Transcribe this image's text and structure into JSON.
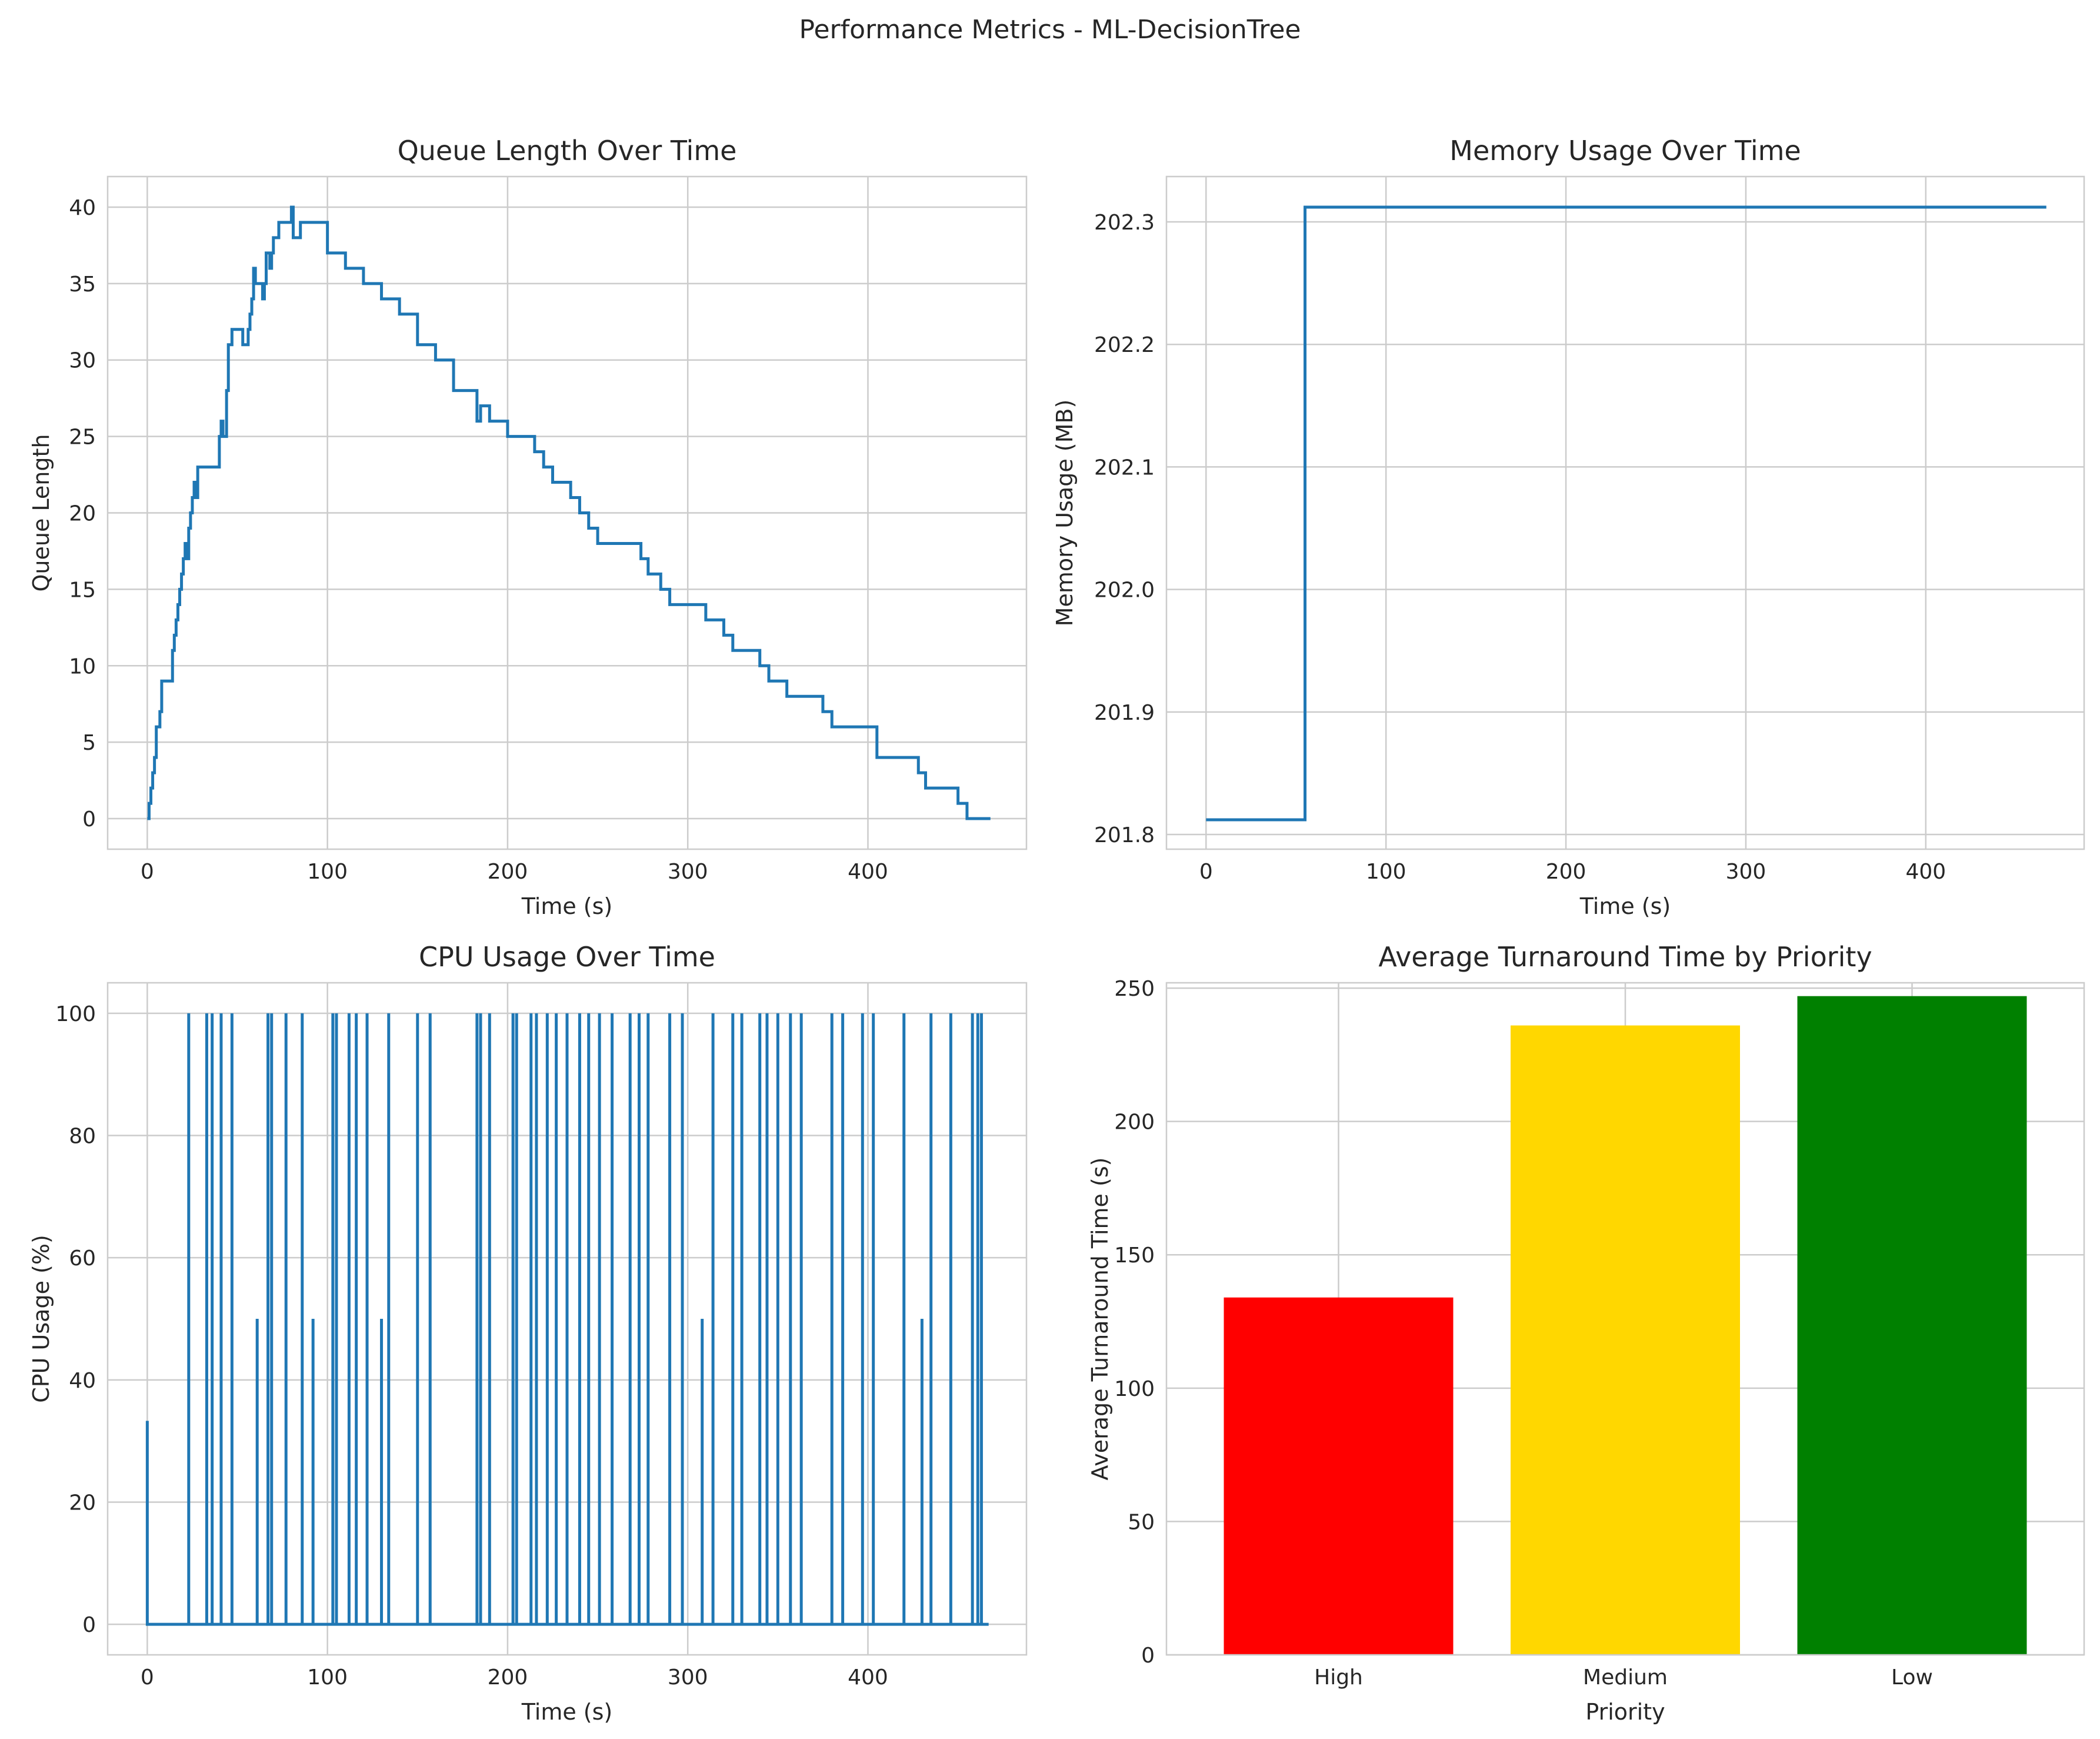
{
  "figure": {
    "title": "Performance Metrics - ML-DecisionTree"
  },
  "chart_data": [
    {
      "id": "queue",
      "type": "line",
      "title": "Queue Length Over Time",
      "xlabel": "Time (s)",
      "ylabel": "Queue Length",
      "xlim": [
        -22,
        488
      ],
      "ylim": [
        -2,
        42
      ],
      "xticks": [
        0,
        100,
        200,
        300,
        400
      ],
      "yticks": [
        0,
        5,
        10,
        15,
        20,
        25,
        30,
        35,
        40
      ],
      "grid": true,
      "color": "#1f77b4",
      "step": true,
      "x": [
        0,
        1,
        2,
        3,
        4,
        5,
        6,
        7,
        8,
        9,
        10,
        14,
        15,
        16,
        17,
        18,
        19,
        20,
        21,
        22,
        23,
        24,
        25,
        26,
        27,
        28,
        30,
        38,
        40,
        41,
        42,
        43,
        44,
        45,
        46,
        47,
        50,
        53,
        55,
        56,
        57,
        58,
        59,
        60,
        62,
        64,
        65,
        66,
        67,
        68,
        69,
        70,
        71,
        72,
        73,
        75,
        78,
        80,
        81,
        85,
        95,
        100,
        110,
        120,
        130,
        140,
        150,
        160,
        165,
        170,
        180,
        183,
        185,
        190,
        200,
        205,
        215,
        220,
        225,
        235,
        240,
        245,
        250,
        260,
        270,
        274,
        275,
        276,
        278,
        285,
        290,
        295,
        305,
        310,
        320,
        325,
        340,
        345,
        355,
        360,
        375,
        380,
        395,
        405,
        420,
        428,
        430,
        432,
        445,
        450,
        455,
        468
      ],
      "y": [
        0,
        1,
        2,
        3,
        4,
        6,
        6,
        7,
        9,
        9,
        9,
        11,
        12,
        13,
        14,
        15,
        16,
        17,
        18,
        17,
        19,
        20,
        21,
        22,
        21,
        23,
        23,
        23,
        25,
        26,
        25,
        25,
        28,
        31,
        31,
        32,
        32,
        31,
        31,
        32,
        33,
        34,
        36,
        35,
        35,
        34,
        35,
        37,
        37,
        36,
        37,
        38,
        38,
        38,
        39,
        39,
        39,
        40,
        38,
        39,
        39,
        37,
        36,
        35,
        34,
        33,
        31,
        30,
        30,
        28,
        28,
        26,
        27,
        26,
        25,
        25,
        24,
        23,
        22,
        21,
        20,
        19,
        18,
        18,
        18,
        17,
        17,
        17,
        16,
        15,
        14,
        14,
        14,
        13,
        12,
        11,
        10,
        9,
        8,
        8,
        7,
        6,
        6,
        4,
        4,
        3,
        3,
        2,
        2,
        1,
        0,
        0
      ]
    },
    {
      "id": "memory",
      "type": "line",
      "title": "Memory Usage Over Time",
      "xlabel": "Time (s)",
      "ylabel": "Memory Usage (MB)",
      "xlim": [
        -22,
        488
      ],
      "ylim": [
        201.788,
        202.337
      ],
      "xticks": [
        0,
        100,
        200,
        300,
        400
      ],
      "yticks": [
        201.8,
        201.9,
        202.0,
        202.1,
        202.2,
        202.3
      ],
      "ytick_labels": [
        "201.8",
        "201.9",
        "202.0",
        "202.1",
        "202.2",
        "202.3"
      ],
      "grid": true,
      "color": "#1f77b4",
      "step": true,
      "x": [
        0,
        55,
        467
      ],
      "y": [
        201.812,
        202.312,
        202.312
      ]
    },
    {
      "id": "cpu",
      "type": "line",
      "title": "CPU Usage Over Time",
      "xlabel": "Time (s)",
      "ylabel": "CPU Usage (%)",
      "xlim": [
        -22,
        488
      ],
      "ylim": [
        -5,
        105
      ],
      "xticks": [
        0,
        100,
        200,
        300,
        400
      ],
      "yticks": [
        0,
        20,
        40,
        60,
        80,
        100
      ],
      "grid": true,
      "color": "#1f77b4",
      "baseline": 0,
      "end": 467,
      "spikes": [
        [
          0,
          33.3
        ],
        [
          23,
          100
        ],
        [
          33,
          100
        ],
        [
          36,
          100
        ],
        [
          41,
          100
        ],
        [
          47,
          100
        ],
        [
          61,
          50
        ],
        [
          67,
          100
        ],
        [
          69,
          100
        ],
        [
          77,
          100
        ],
        [
          86,
          100
        ],
        [
          92,
          50
        ],
        [
          103,
          100
        ],
        [
          105,
          100
        ],
        [
          112,
          100
        ],
        [
          116,
          100
        ],
        [
          122,
          100
        ],
        [
          130,
          50
        ],
        [
          134,
          100
        ],
        [
          150,
          100
        ],
        [
          157,
          100
        ],
        [
          183,
          100
        ],
        [
          185,
          100
        ],
        [
          190,
          100
        ],
        [
          203,
          100
        ],
        [
          205,
          100
        ],
        [
          213,
          100
        ],
        [
          216,
          100
        ],
        [
          222,
          100
        ],
        [
          227,
          100
        ],
        [
          233,
          100
        ],
        [
          240,
          100
        ],
        [
          245,
          100
        ],
        [
          251,
          100
        ],
        [
          258,
          100
        ],
        [
          268,
          100
        ],
        [
          273,
          100
        ],
        [
          278,
          100
        ],
        [
          290,
          100
        ],
        [
          297,
          100
        ],
        [
          308,
          50
        ],
        [
          314,
          100
        ],
        [
          325,
          100
        ],
        [
          330,
          100
        ],
        [
          340,
          100
        ],
        [
          344,
          100
        ],
        [
          350,
          100
        ],
        [
          357,
          100
        ],
        [
          363,
          100
        ],
        [
          380,
          100
        ],
        [
          386,
          100
        ],
        [
          397,
          100
        ],
        [
          403,
          100
        ],
        [
          420,
          100
        ],
        [
          430,
          50
        ],
        [
          435,
          100
        ],
        [
          446,
          100
        ],
        [
          458,
          100
        ],
        [
          461,
          100
        ],
        [
          463,
          100
        ]
      ]
    },
    {
      "id": "turnaround",
      "type": "bar",
      "title": "Average Turnaround Time by Priority",
      "xlabel": "Priority",
      "ylabel": "Average Turnaround Time (s)",
      "categories": [
        "High",
        "Medium",
        "Low"
      ],
      "values": [
        134,
        236,
        247
      ],
      "colors": [
        "#ff0000",
        "#ffd700",
        "#008000"
      ],
      "ylim": [
        0,
        252
      ],
      "yticks": [
        0,
        50,
        100,
        150,
        200,
        250
      ],
      "grid": true
    }
  ]
}
